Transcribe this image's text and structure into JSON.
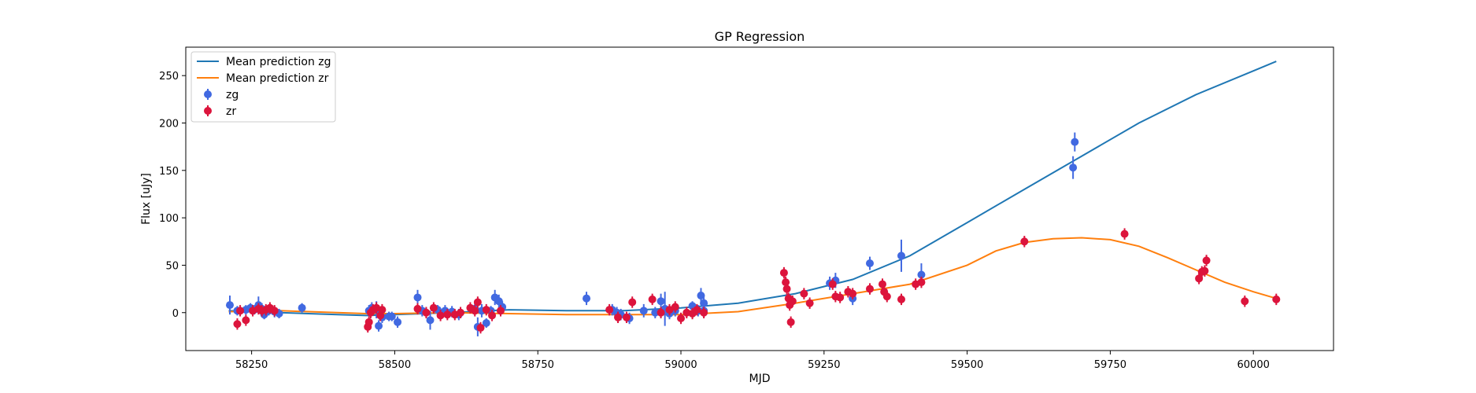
{
  "chart_data": {
    "type": "scatter",
    "title": "GP Regression",
    "xlabel": "MJD",
    "ylabel": "Flux [uJy]",
    "xlim": [
      58135,
      60140
    ],
    "ylim": [
      -40,
      280
    ],
    "xticks": [
      58250,
      58500,
      58750,
      59000,
      59250,
      59500,
      59750,
      60000
    ],
    "yticks": [
      0,
      50,
      100,
      150,
      200,
      250
    ],
    "grid": false,
    "legend_position": "top-left",
    "legend": {
      "line_zg": "Mean prediction zg",
      "line_zr": "Mean prediction zr",
      "points_zg": "zg",
      "points_zr": "zr"
    },
    "colors": {
      "zg_points": "#4169e1",
      "zr_points": "#dc143c",
      "zg_line": "#1f77b4",
      "zr_line": "#ff7f0e"
    },
    "lines": [
      {
        "name": "Mean prediction zg",
        "x": [
          58210,
          58300,
          58400,
          58450,
          58500,
          58600,
          58700,
          58800,
          58900,
          59000,
          59100,
          59200,
          59300,
          59400,
          59500,
          59600,
          59700,
          59800,
          59900,
          60000,
          60040
        ],
        "y": [
          2,
          0,
          -2,
          -3,
          -2,
          0,
          3,
          2,
          2,
          5,
          10,
          20,
          35,
          60,
          95,
          130,
          165,
          200,
          230,
          255,
          265
        ]
      },
      {
        "name": "Mean prediction zr",
        "x": [
          58210,
          58300,
          58400,
          58450,
          58500,
          58600,
          58700,
          58800,
          58900,
          59000,
          59100,
          59200,
          59300,
          59400,
          59500,
          59550,
          59600,
          59650,
          59700,
          59750,
          59800,
          59850,
          59900,
          59950,
          60000,
          60040
        ],
        "y": [
          1,
          2,
          0,
          -1,
          -1,
          0,
          -1,
          -2,
          -2,
          -2,
          1,
          10,
          20,
          30,
          50,
          65,
          74,
          78,
          79,
          77,
          70,
          58,
          45,
          32,
          22,
          15
        ]
      }
    ],
    "series": [
      {
        "name": "zg",
        "x": [
          58212,
          58225,
          58240,
          58248,
          58255,
          58262,
          58268,
          58272,
          58280,
          58290,
          58298,
          58338,
          58455,
          58460,
          58468,
          58472,
          58478,
          58490,
          58495,
          58505,
          58540,
          58548,
          58562,
          58575,
          58588,
          58600,
          58612,
          58640,
          58645,
          58652,
          58660,
          58668,
          58675,
          58682,
          58688,
          58835,
          58880,
          58888,
          58895,
          58910,
          58935,
          58955,
          58965,
          58972,
          58980,
          58990,
          59020,
          59030,
          59035,
          59040,
          59040,
          59260,
          59270,
          59300,
          59330,
          59385,
          59420,
          59685,
          59688
        ],
        "y": [
          8,
          2,
          3,
          5,
          3,
          8,
          4,
          -2,
          2,
          1,
          -1,
          5,
          2,
          5,
          3,
          -14,
          -5,
          -4,
          -4,
          -10,
          16,
          2,
          -8,
          3,
          2,
          1,
          -2,
          4,
          -15,
          2,
          -11,
          2,
          16,
          12,
          6,
          15,
          3,
          0,
          -2,
          -6,
          2,
          0,
          12,
          4,
          -1,
          2,
          7,
          2,
          18,
          10,
          2,
          31,
          34,
          15,
          52,
          60,
          40,
          153,
          180
        ],
        "yerr": [
          10,
          5,
          5,
          5,
          5,
          9,
          6,
          5,
          5,
          6,
          5,
          5,
          6,
          6,
          9,
          6,
          6,
          5,
          5,
          6,
          8,
          6,
          10,
          5,
          6,
          6,
          6,
          6,
          10,
          7,
          5,
          5,
          8,
          7,
          6,
          7,
          6,
          6,
          6,
          6,
          7,
          6,
          8,
          18,
          6,
          6,
          5,
          6,
          8,
          6,
          5,
          7,
          8,
          7,
          7,
          17,
          12,
          12,
          10
        ]
      },
      {
        "name": "zr",
        "x": [
          58225,
          58230,
          58240,
          58252,
          58262,
          58268,
          58275,
          58282,
          58290,
          58453,
          58455,
          58458,
          58462,
          58468,
          58475,
          58478,
          58540,
          58555,
          58568,
          58580,
          58592,
          58605,
          58615,
          58632,
          58640,
          58645,
          58650,
          58660,
          58670,
          58685,
          58875,
          58890,
          58905,
          58915,
          58950,
          58965,
          58980,
          58990,
          59000,
          59010,
          59020,
          59028,
          59040,
          59180,
          59183,
          59185,
          59188,
          59190,
          59192,
          59195,
          59215,
          59225,
          59265,
          59270,
          59278,
          59292,
          59300,
          59330,
          59352,
          59355,
          59360,
          59385,
          59410,
          59420,
          59600,
          59775,
          59905,
          59910,
          59915,
          59918,
          59985,
          60040
        ],
        "y": [
          -12,
          2,
          -8,
          2,
          4,
          2,
          3,
          5,
          2,
          -15,
          -10,
          0,
          3,
          5,
          -3,
          3,
          4,
          0,
          5,
          -3,
          -2,
          -2,
          0,
          5,
          2,
          11,
          -16,
          3,
          -3,
          2,
          3,
          -5,
          -5,
          11,
          14,
          0,
          3,
          6,
          -6,
          0,
          -1,
          3,
          0,
          42,
          32,
          25,
          15,
          8,
          -10,
          12,
          20,
          10,
          30,
          17,
          16,
          22,
          20,
          25,
          30,
          22,
          17,
          14,
          30,
          32,
          75,
          83,
          36,
          43,
          44,
          55,
          12,
          14
        ]
      }
    ]
  }
}
